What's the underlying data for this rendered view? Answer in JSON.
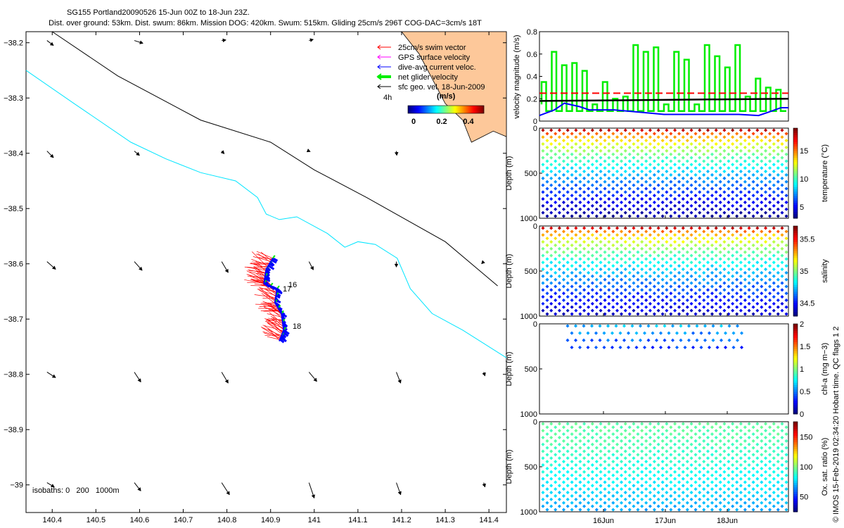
{
  "title": {
    "line1": "SG155 Portland20090526 15-Jun 00Z to 18-Jun 23Z.",
    "line2": "Dist. over ground: 53km. Dist. swum: 86km. Mission DOG: 420km. Swum: 515km. Gliding 25cm/s 296T COG-DAC=3cm/s 18T"
  },
  "credit": "© IMOS 15-Feb-2019 02:34:20 Hobart time. QC flags 1  2",
  "colors": {
    "swim": "#ff0000",
    "gps": "#ff00ff",
    "dac": "#0000ff",
    "net": "#00ee00",
    "geo": "#000000",
    "isobath200": "#00e5ff",
    "land": "#fdc89a",
    "thresh": "#ff0000"
  },
  "chart_data": [
    {
      "type": "map",
      "xlim": [
        140.34,
        141.44
      ],
      "ylim": [
        -39.05,
        -38.18
      ],
      "xticks": [
        140.4,
        140.5,
        140.6,
        140.7,
        140.8,
        140.9,
        141,
        141.1,
        141.2,
        141.3,
        141.4
      ],
      "xtick_labels": [
        "140.4",
        "140.5",
        "140.6",
        "140.7",
        "140.8",
        "140.9",
        "141",
        "141.1",
        "141.2",
        "141.3",
        "141.4"
      ],
      "yticks": [
        -38.2,
        -38.3,
        -38.4,
        -38.5,
        -38.6,
        -38.7,
        -38.8,
        -38.9,
        -39
      ],
      "ytick_labels": [
        "−38.2",
        "−38.3",
        "−38.4",
        "−38.5",
        "−38.6",
        "−38.7",
        "−38.8",
        "−38.9",
        "−39"
      ],
      "legend": [
        {
          "label": "25cm/s swim vector",
          "color": "#ff0000"
        },
        {
          "label": "GPS surface velocity",
          "color": "#ff00ff"
        },
        {
          "label": "dive-avg current veloc.",
          "color": "#0000ff"
        },
        {
          "label": "net glider velocity",
          "color": "#00ee00"
        },
        {
          "label": "sfc geo. vel. 18-Jun-2009",
          "color": "#000000"
        }
      ],
      "legend_time": "4h",
      "colorbar": {
        "label": "(m/s)",
        "ticks": [
          "0",
          "0.2",
          "0.4"
        ]
      },
      "isobaths_note": "isobaths: 0   200   1000m",
      "day_labels": [
        {
          "text": "16",
          "lon": 140.925,
          "lat": -38.654
        },
        {
          "text": "17",
          "lon": 140.917,
          "lat": -38.662
        },
        {
          "text": "18",
          "lon": 140.93,
          "lat": -38.713
        }
      ],
      "isobath_1000m": [
        [
          140.4,
          -38.18
        ],
        [
          140.55,
          -38.26
        ],
        [
          140.74,
          -38.34
        ],
        [
          140.9,
          -38.38
        ],
        [
          141.0,
          -38.43
        ],
        [
          141.12,
          -38.48
        ],
        [
          141.3,
          -38.56
        ],
        [
          141.42,
          -38.64
        ]
      ],
      "isobath_200m": [
        [
          140.34,
          -38.25
        ],
        [
          140.45,
          -38.31
        ],
        [
          140.58,
          -38.38
        ],
        [
          140.66,
          -38.41
        ],
        [
          140.74,
          -38.435
        ],
        [
          140.82,
          -38.45
        ],
        [
          140.87,
          -38.48
        ],
        [
          140.89,
          -38.51
        ],
        [
          140.92,
          -38.52
        ],
        [
          140.96,
          -38.515
        ],
        [
          141.03,
          -38.545
        ],
        [
          141.07,
          -38.57
        ],
        [
          141.1,
          -38.56
        ],
        [
          141.14,
          -38.565
        ],
        [
          141.19,
          -38.59
        ],
        [
          141.22,
          -38.645
        ],
        [
          141.27,
          -38.69
        ],
        [
          141.34,
          -38.72
        ],
        [
          141.44,
          -38.77
        ]
      ],
      "land": [
        [
          141.2,
          -38.18
        ],
        [
          141.44,
          -38.18
        ],
        [
          141.44,
          -38.37
        ],
        [
          141.41,
          -38.36
        ],
        [
          141.36,
          -38.38
        ],
        [
          141.34,
          -38.34
        ],
        [
          141.3,
          -38.31
        ],
        [
          141.28,
          -38.28
        ],
        [
          141.24,
          -38.22
        ]
      ],
      "geo_vectors": [
        {
          "lon": 140.4,
          "lat": -38.2,
          "dlon": 0.015,
          "dlat": -0.009
        },
        {
          "lon": 140.6,
          "lat": -38.2,
          "dlon": 0.02,
          "dlat": -0.005
        },
        {
          "lon": 140.8,
          "lat": -38.2,
          "dlon": 0.01,
          "dlat": 0.001
        },
        {
          "lon": 141.0,
          "lat": -38.2,
          "dlon": 0.01,
          "dlat": 0.002
        },
        {
          "lon": 140.4,
          "lat": -38.4,
          "dlon": 0.015,
          "dlat": -0.012
        },
        {
          "lon": 140.6,
          "lat": -38.4,
          "dlon": 0.012,
          "dlat": -0.008
        },
        {
          "lon": 140.8,
          "lat": -38.4,
          "dlon": 0.006,
          "dlat": -0.005
        },
        {
          "lon": 141.0,
          "lat": -38.4,
          "dlon": 0.003,
          "dlat": -0.001
        },
        {
          "lon": 141.2,
          "lat": -38.4,
          "dlon": 0.001,
          "dlat": -0.008
        },
        {
          "lon": 140.4,
          "lat": -38.6,
          "dlon": 0.02,
          "dlat": -0.014
        },
        {
          "lon": 140.6,
          "lat": -38.6,
          "dlon": 0.018,
          "dlat": -0.016
        },
        {
          "lon": 140.8,
          "lat": -38.6,
          "dlon": 0.015,
          "dlat": -0.02
        },
        {
          "lon": 141.0,
          "lat": -38.6,
          "dlon": 0.01,
          "dlat": -0.015
        },
        {
          "lon": 141.2,
          "lat": -38.6,
          "dlon": 0.0,
          "dlat": -0.01
        },
        {
          "lon": 141.4,
          "lat": -38.6,
          "dlon": -0.005,
          "dlat": -0.004
        },
        {
          "lon": 140.4,
          "lat": -38.8,
          "dlon": 0.02,
          "dlat": -0.01
        },
        {
          "lon": 140.6,
          "lat": -38.8,
          "dlon": 0.015,
          "dlat": -0.018
        },
        {
          "lon": 140.8,
          "lat": -38.8,
          "dlon": 0.015,
          "dlat": -0.02
        },
        {
          "lon": 141.0,
          "lat": -38.8,
          "dlon": 0.018,
          "dlat": -0.017
        },
        {
          "lon": 141.2,
          "lat": -38.8,
          "dlon": 0.01,
          "dlat": -0.02
        },
        {
          "lon": 141.4,
          "lat": -38.8,
          "dlon": 0.003,
          "dlat": -0.007
        },
        {
          "lon": 140.4,
          "lat": -39.0,
          "dlon": 0.017,
          "dlat": -0.008
        },
        {
          "lon": 140.6,
          "lat": -39.0,
          "dlon": 0.015,
          "dlat": -0.015
        },
        {
          "lon": 140.8,
          "lat": -39.0,
          "dlon": 0.018,
          "dlat": -0.022
        },
        {
          "lon": 141.0,
          "lat": -39.0,
          "dlon": 0.012,
          "dlat": -0.028
        },
        {
          "lon": 141.2,
          "lat": -39.0,
          "dlon": 0.01,
          "dlat": -0.022
        },
        {
          "lon": 141.4,
          "lat": -39.0,
          "dlon": 0.003,
          "dlat": -0.008
        }
      ],
      "track": [
        [
          140.905,
          -38.59
        ],
        [
          140.89,
          -38.61
        ],
        [
          140.885,
          -38.635
        ],
        [
          140.915,
          -38.645
        ],
        [
          140.91,
          -38.67
        ],
        [
          140.925,
          -38.69
        ],
        [
          140.93,
          -38.72
        ],
        [
          140.92,
          -38.74
        ]
      ]
    },
    {
      "type": "line",
      "ylabel": "velocity magnitude (m/s)",
      "ylim": [
        0,
        0.8
      ],
      "yticks": [
        "0",
        "0.2",
        "0.4",
        "0.6",
        "0.8"
      ],
      "threshold": 0.25,
      "net_peaks": [
        0.35,
        0.62,
        0.5,
        0.52,
        0.45,
        0.15,
        0.35,
        0.2,
        0.22,
        0.68,
        0.62,
        0.66,
        0.15,
        0.62,
        0.55,
        0.15,
        0.68,
        0.58,
        0.48,
        0.68,
        0.22,
        0.38,
        0.3,
        0.28
      ],
      "dac_x": [
        0,
        0.06,
        0.1,
        0.16,
        0.2,
        0.3,
        0.4,
        0.5,
        0.6,
        0.68,
        0.8,
        0.88,
        0.92,
        0.97,
        1
      ],
      "dac_y": [
        0.05,
        0.1,
        0.16,
        0.13,
        0.1,
        0.1,
        0.08,
        0.06,
        0.06,
        0.06,
        0.06,
        0.05,
        0.08,
        0.12,
        0.12
      ],
      "geo_y": [
        0.18,
        0.2
      ]
    },
    {
      "type": "scatter",
      "variable": "temperature",
      "ylabel": "Depth (m)",
      "colorbar_label": "temperature (°C)",
      "colorbar_ticks": [
        "5",
        "10",
        "15"
      ],
      "cmin": 3,
      "cmax": 19,
      "yticks": [
        "0",
        "500",
        "1000"
      ],
      "casts": 30,
      "surface": 18,
      "bottom": 3.5
    },
    {
      "type": "scatter",
      "variable": "salinity",
      "ylabel": "Depth (m)",
      "colorbar_label": "salinity",
      "colorbar_ticks": [
        "34.5",
        "35",
        "35.5"
      ],
      "cmin": 34.3,
      "cmax": 35.7,
      "yticks": [
        "0",
        "500",
        "1000"
      ],
      "casts": 30,
      "surface": 35.6,
      "bottom": 34.4
    },
    {
      "type": "scatter",
      "variable": "chl-a",
      "ylabel": "Depth (m)",
      "colorbar_label": "chl-a (mg m−3)",
      "colorbar_ticks": [
        "0",
        "0.5",
        "1",
        "1.5",
        "2"
      ],
      "cmin": 0,
      "cmax": 2,
      "yticks": [
        "0",
        "500",
        "1000"
      ],
      "casts": 22,
      "surface": 0.6,
      "bottom": 0.05
    },
    {
      "type": "scatter",
      "variable": "oxygen",
      "ylabel": "Depth (m)",
      "colorbar_label": "Ox. sat. ratio (%)",
      "colorbar_ticks": [
        "50",
        "100",
        "150"
      ],
      "cmin": 25,
      "cmax": 175,
      "yticks": [
        "0",
        "500",
        "1000"
      ],
      "casts": 30,
      "surface": 95,
      "bottom": 68,
      "xtick_labels": [
        "16Jun",
        "17Jun",
        "18Jun"
      ]
    }
  ]
}
